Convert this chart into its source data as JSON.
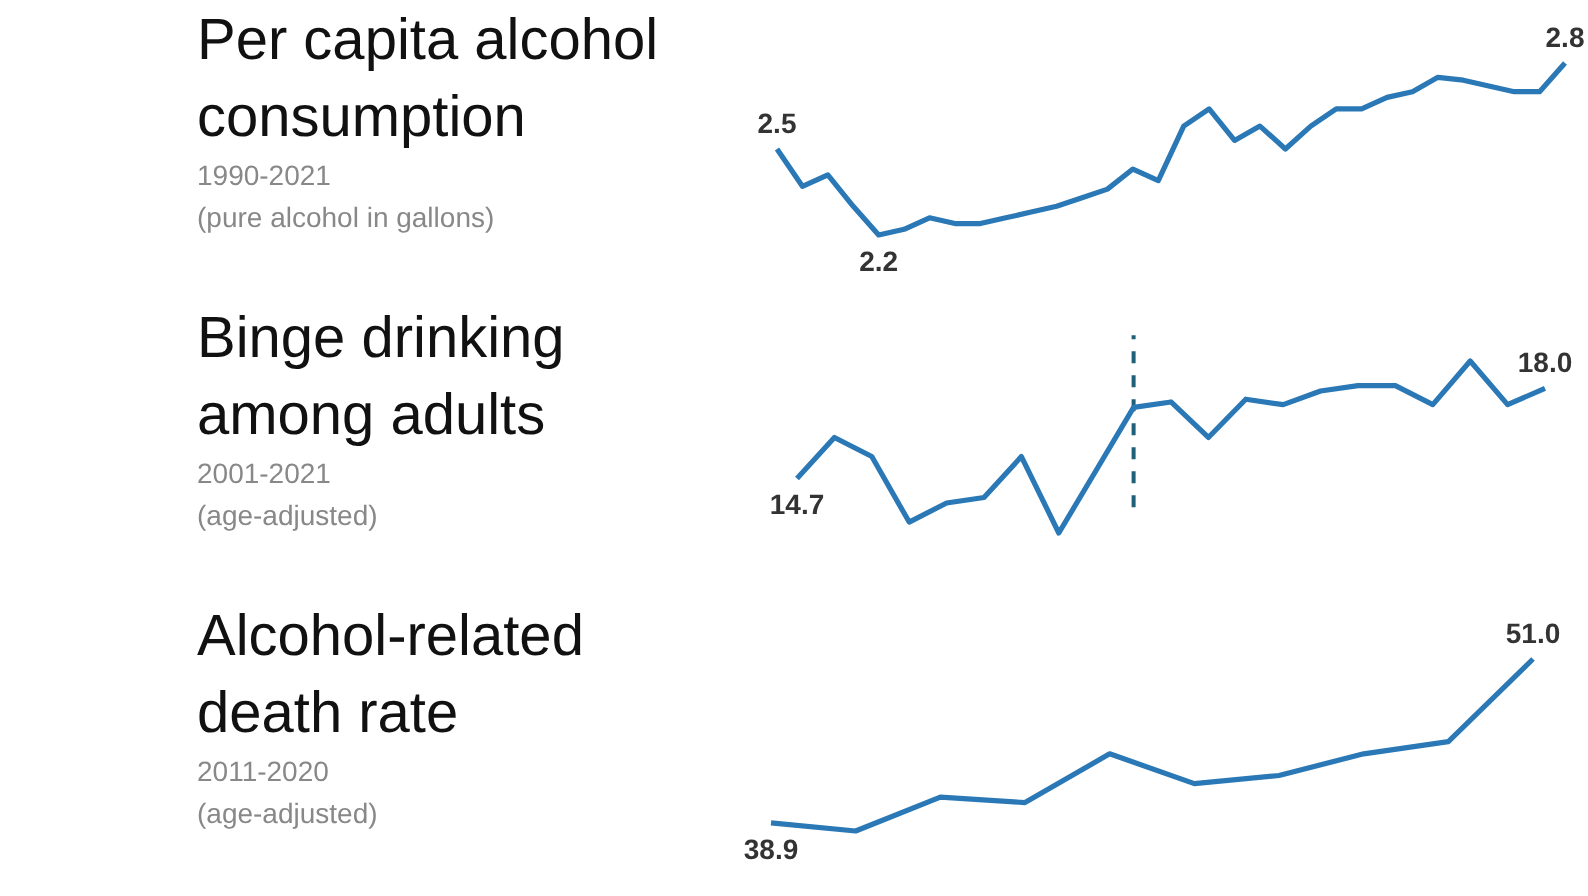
{
  "chart_data": [
    {
      "type": "line",
      "title": "Per capita alcohol consumption",
      "annotations": [
        "1990-2021",
        "(pure alcohol in gallons)"
      ],
      "tick_labels": false,
      "marker": "none",
      "line_style": "solid",
      "categories": [
        null,
        null,
        null,
        null,
        null,
        null,
        null,
        null,
        null,
        null,
        null,
        null,
        null,
        null,
        null,
        null,
        null,
        null,
        null,
        null,
        null,
        null,
        null,
        null,
        null,
        null,
        null,
        null,
        null,
        null,
        null,
        null
      ],
      "series": [
        {
          "color": "#2a78b5",
          "values": [
            2.5,
            2.37,
            2.41,
            2.3,
            2.2,
            2.22,
            2.26,
            2.24,
            2.24,
            2.26,
            2.28,
            2.3,
            2.33,
            2.36,
            2.43,
            2.39,
            2.58,
            2.64,
            2.53,
            2.58,
            2.5,
            2.58,
            2.64,
            2.64,
            2.68,
            2.7,
            2.75,
            2.74,
            2.72,
            2.7,
            2.7,
            2.8
          ],
          "value_labels": [
            "2.5",
            null,
            null,
            null,
            "2.2",
            null,
            null,
            null,
            null,
            null,
            null,
            null,
            null,
            null,
            null,
            null,
            null,
            null,
            null,
            null,
            null,
            null,
            null,
            null,
            null,
            null,
            null,
            null,
            null,
            null,
            null,
            "2.8"
          ]
        }
      ]
    },
    {
      "type": "line",
      "title": "Binge drinking among adults",
      "annotations": [
        "2001-2021",
        "(age-adjusted)"
      ],
      "tick_labels": false,
      "marker": "none",
      "line_style": "solid",
      "categories": [
        null,
        null,
        null,
        null,
        null,
        null,
        null,
        null,
        null,
        null,
        null,
        null,
        null,
        null,
        null,
        null,
        null,
        null,
        null,
        null,
        null
      ],
      "series": [
        {
          "color": "#2a78b5",
          "values": [
            14.7,
            16.2,
            15.5,
            13.1,
            13.8,
            14.0,
            15.5,
            12.7,
            15.0,
            17.3,
            17.5,
            16.2,
            17.6,
            17.4,
            17.9,
            18.1,
            18.1,
            17.4,
            19.0,
            17.4,
            18.0
          ],
          "value_labels": [
            "14.7",
            null,
            null,
            null,
            null,
            null,
            null,
            null,
            null,
            null,
            null,
            null,
            null,
            null,
            null,
            null,
            null,
            null,
            null,
            null,
            "18.0"
          ]
        }
      ]
    },
    {
      "type": "line",
      "title": "Alcohol-related death rate",
      "annotations": [
        "2011-2020",
        "(age-adjusted)"
      ],
      "tick_labels": false,
      "marker": "none",
      "line_style": "solid",
      "categories": [
        null,
        null,
        null,
        null,
        null,
        null,
        null,
        null,
        null,
        null
      ],
      "series": [
        {
          "color": "#2a78b5",
          "values": [
            38.9,
            38.3,
            40.8,
            40.4,
            44.0,
            41.8,
            42.4,
            44.0,
            44.9,
            51.0
          ],
          "value_labels": [
            "38.9",
            null,
            null,
            null,
            null,
            null,
            null,
            null,
            null,
            "51.0"
          ]
        }
      ]
    }
  ]
}
